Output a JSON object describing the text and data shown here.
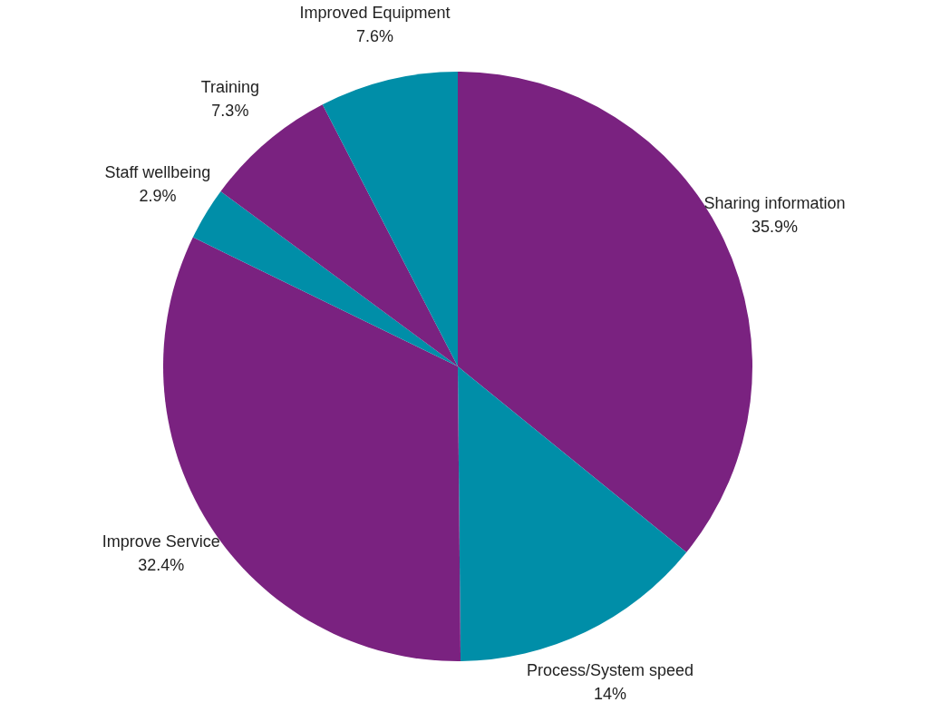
{
  "chart_data": {
    "type": "pie",
    "categories": [
      "Sharing information",
      "Process/System speed",
      "Improve Service",
      "Staff wellbeing",
      "Training",
      "Improved Equipment"
    ],
    "values": [
      35.9,
      14,
      32.4,
      2.9,
      7.3,
      7.6
    ],
    "colors": [
      "#7a2280",
      "#008ea8",
      "#7a2280",
      "#008ea8",
      "#7a2280",
      "#008ea8"
    ],
    "value_labels": [
      "35.9%",
      "14%",
      "32.4%",
      "2.9%",
      "7.3%",
      "7.6%"
    ]
  }
}
